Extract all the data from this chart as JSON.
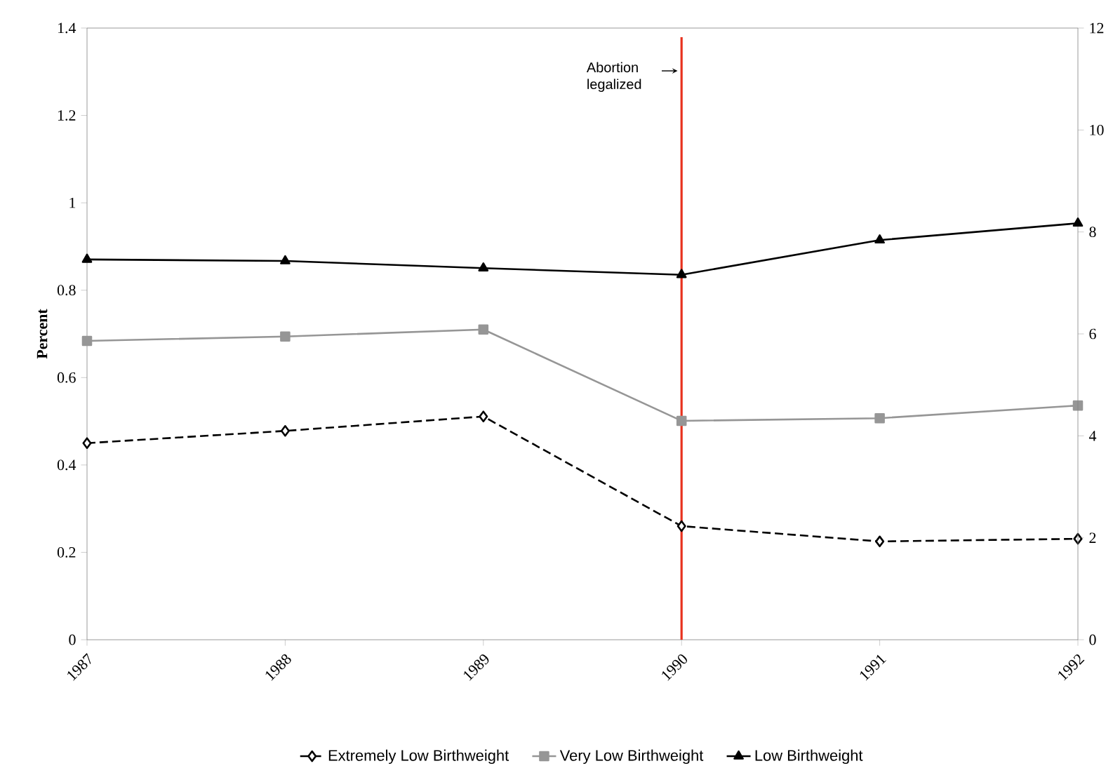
{
  "chart_data": {
    "type": "line",
    "ylabel": "Percent",
    "x": [
      1987,
      1988,
      1989,
      1990,
      1991,
      1992
    ],
    "xlim": [
      1987,
      1992
    ],
    "xticks": [
      1987,
      1988,
      1989,
      1990,
      1991,
      1992
    ],
    "ylim": [
      0,
      1.4
    ],
    "yticks": [
      0,
      0.2,
      0.4,
      0.6,
      0.8,
      1,
      1.2,
      1.4
    ],
    "y2lim": [
      0,
      12
    ],
    "y2ticks": [
      0,
      2,
      4,
      6,
      8,
      10,
      12
    ],
    "legend": "bottom",
    "series": [
      {
        "name": "Extremely Low Birthweight",
        "color": "#000000",
        "marker": "diamond",
        "line_style": "dashed",
        "values": [
          0.45,
          0.478,
          0.511,
          0.26,
          0.225,
          0.231
        ]
      },
      {
        "name": "Very Low Birthweight",
        "color": "#969696",
        "marker": "square",
        "line_style": "solid",
        "values": [
          0.684,
          0.694,
          0.71,
          0.501,
          0.507,
          0.536
        ]
      },
      {
        "name": "Low Birthweight",
        "color": "#000000",
        "marker": "triangle",
        "line_style": "solid",
        "axis": "y2",
        "values": [
          7.46,
          7.43,
          7.29,
          7.16,
          7.84,
          8.17
        ]
      }
    ],
    "ref_lines": [
      {
        "axis": "x",
        "value": 1990,
        "label": "Abortion legalized",
        "color": "#e8321e"
      }
    ]
  }
}
